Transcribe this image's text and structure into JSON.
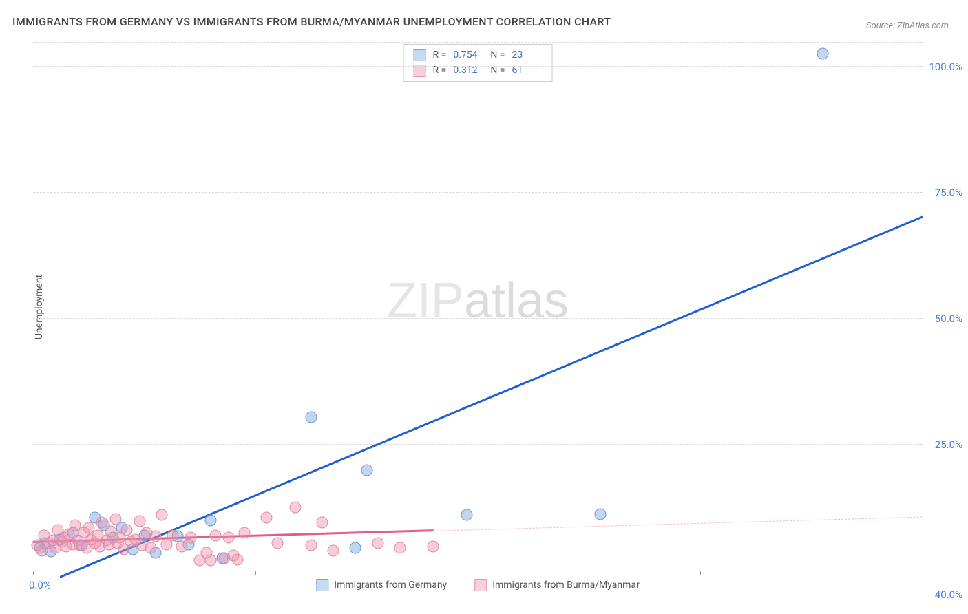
{
  "title": "IMMIGRANTS FROM GERMANY VS IMMIGRANTS FROM BURMA/MYANMAR UNEMPLOYMENT CORRELATION CHART",
  "source": "Source: ZipAtlas.com",
  "ylabel": "Unemployment",
  "watermark": "ZIPatlas",
  "chart": {
    "type": "scatter",
    "xlim": [
      0,
      40
    ],
    "ylim": [
      0,
      105
    ],
    "x_ticks": [
      0,
      10,
      20,
      30,
      40
    ],
    "x_tick_labels": [
      "0.0%",
      "",
      "",
      "",
      "40.0%"
    ],
    "y_ticks": [
      25,
      50,
      75,
      100
    ],
    "y_tick_labels": [
      "25.0%",
      "50.0%",
      "75.0%",
      "100.0%"
    ],
    "background_color": "#ffffff",
    "grid_color": "#d8d8d8",
    "axis_label_color": "#4a7fd8",
    "series": [
      {
        "name": "Immigrants from Germany",
        "color_fill": "rgba(122,163,224,0.45)",
        "color_stroke": "#6a95d4",
        "swatch_fill": "#c8d9f2",
        "swatch_stroke": "#7aa3e0",
        "trend_color": "#1f5fd0",
        "trend_width": 2.5,
        "r_label": "R =",
        "r_value": "0.754",
        "n_label": "N =",
        "n_value": "23",
        "trend": {
          "x1": 1.2,
          "y1": -1.5,
          "x2": 40,
          "y2": 70
        },
        "points": [
          {
            "x": 0.3,
            "y": 4.5
          },
          {
            "x": 0.5,
            "y": 5.5
          },
          {
            "x": 0.8,
            "y": 3.8
          },
          {
            "x": 1.2,
            "y": 6.2
          },
          {
            "x": 1.8,
            "y": 7.5
          },
          {
            "x": 2.2,
            "y": 5.0
          },
          {
            "x": 2.8,
            "y": 10.5
          },
          {
            "x": 3.2,
            "y": 9.0
          },
          {
            "x": 3.6,
            "y": 6.5
          },
          {
            "x": 4.0,
            "y": 8.5
          },
          {
            "x": 4.5,
            "y": 4.2
          },
          {
            "x": 5.0,
            "y": 7.0
          },
          {
            "x": 5.5,
            "y": 3.5
          },
          {
            "x": 6.5,
            "y": 6.8
          },
          {
            "x": 7.0,
            "y": 5.2
          },
          {
            "x": 8.0,
            "y": 10.0
          },
          {
            "x": 8.5,
            "y": 2.5
          },
          {
            "x": 12.5,
            "y": 30.5
          },
          {
            "x": 14.5,
            "y": 4.5
          },
          {
            "x": 15.0,
            "y": 20.0
          },
          {
            "x": 19.5,
            "y": 11.0
          },
          {
            "x": 25.5,
            "y": 11.2
          },
          {
            "x": 35.5,
            "y": 102.5
          }
        ]
      },
      {
        "name": "Immigrants from Burma/Myanmar",
        "color_fill": "rgba(238,145,170,0.45)",
        "color_stroke": "#e08aa3",
        "swatch_fill": "#f7d0db",
        "swatch_stroke": "#ee91aa",
        "trend_color": "#e85a8a",
        "trend_width": 2.5,
        "trend_dash_color": "#f4b8cb",
        "r_label": "R =",
        "r_value": "0.312",
        "n_label": "N =",
        "n_value": "61",
        "trend": {
          "x1": 0,
          "y1": 5.5,
          "x2": 18,
          "y2": 7.8
        },
        "trend_dash": {
          "x1": 18,
          "y1": 7.8,
          "x2": 40,
          "y2": 10.6
        },
        "points": [
          {
            "x": 0.2,
            "y": 5.0
          },
          {
            "x": 0.4,
            "y": 4.0
          },
          {
            "x": 0.5,
            "y": 7.0
          },
          {
            "x": 0.7,
            "y": 5.5
          },
          {
            "x": 0.9,
            "y": 6.0
          },
          {
            "x": 1.0,
            "y": 4.5
          },
          {
            "x": 1.1,
            "y": 8.0
          },
          {
            "x": 1.3,
            "y": 5.8
          },
          {
            "x": 1.4,
            "y": 6.5
          },
          {
            "x": 1.5,
            "y": 4.8
          },
          {
            "x": 1.6,
            "y": 7.2
          },
          {
            "x": 1.8,
            "y": 5.2
          },
          {
            "x": 1.9,
            "y": 9.0
          },
          {
            "x": 2.0,
            "y": 6.0
          },
          {
            "x": 2.1,
            "y": 5.0
          },
          {
            "x": 2.3,
            "y": 7.5
          },
          {
            "x": 2.4,
            "y": 4.5
          },
          {
            "x": 2.5,
            "y": 8.5
          },
          {
            "x": 2.6,
            "y": 6.2
          },
          {
            "x": 2.8,
            "y": 5.5
          },
          {
            "x": 2.9,
            "y": 7.0
          },
          {
            "x": 3.0,
            "y": 4.8
          },
          {
            "x": 3.1,
            "y": 9.5
          },
          {
            "x": 3.3,
            "y": 6.0
          },
          {
            "x": 3.4,
            "y": 5.2
          },
          {
            "x": 3.5,
            "y": 7.8
          },
          {
            "x": 3.7,
            "y": 10.2
          },
          {
            "x": 3.8,
            "y": 5.5
          },
          {
            "x": 3.9,
            "y": 6.5
          },
          {
            "x": 4.1,
            "y": 4.2
          },
          {
            "x": 4.2,
            "y": 8.0
          },
          {
            "x": 4.4,
            "y": 5.8
          },
          {
            "x": 4.6,
            "y": 6.2
          },
          {
            "x": 4.8,
            "y": 9.8
          },
          {
            "x": 4.9,
            "y": 5.0
          },
          {
            "x": 5.1,
            "y": 7.5
          },
          {
            "x": 5.3,
            "y": 4.5
          },
          {
            "x": 5.5,
            "y": 6.8
          },
          {
            "x": 5.8,
            "y": 11.0
          },
          {
            "x": 6.0,
            "y": 5.2
          },
          {
            "x": 6.3,
            "y": 7.0
          },
          {
            "x": 6.7,
            "y": 4.8
          },
          {
            "x": 7.1,
            "y": 6.5
          },
          {
            "x": 7.5,
            "y": 2.0
          },
          {
            "x": 7.8,
            "y": 3.5
          },
          {
            "x": 8.0,
            "y": 2.0
          },
          {
            "x": 8.2,
            "y": 7.0
          },
          {
            "x": 8.6,
            "y": 2.5
          },
          {
            "x": 8.8,
            "y": 6.5
          },
          {
            "x": 9.0,
            "y": 3.0
          },
          {
            "x": 9.2,
            "y": 2.2
          },
          {
            "x": 9.5,
            "y": 7.5
          },
          {
            "x": 10.5,
            "y": 10.5
          },
          {
            "x": 11.0,
            "y": 5.5
          },
          {
            "x": 11.8,
            "y": 12.5
          },
          {
            "x": 12.5,
            "y": 5.0
          },
          {
            "x": 13.0,
            "y": 9.5
          },
          {
            "x": 13.5,
            "y": 4.0
          },
          {
            "x": 15.5,
            "y": 5.5
          },
          {
            "x": 16.5,
            "y": 4.5
          },
          {
            "x": 18.0,
            "y": 4.8
          }
        ]
      }
    ]
  },
  "legend": {
    "items": [
      {
        "label": "Immigrants from Germany",
        "fill": "#c8d9f2",
        "stroke": "#7aa3e0"
      },
      {
        "label": "Immigrants from Burma/Myanmar",
        "fill": "#f7d0db",
        "stroke": "#ee91aa"
      }
    ]
  }
}
